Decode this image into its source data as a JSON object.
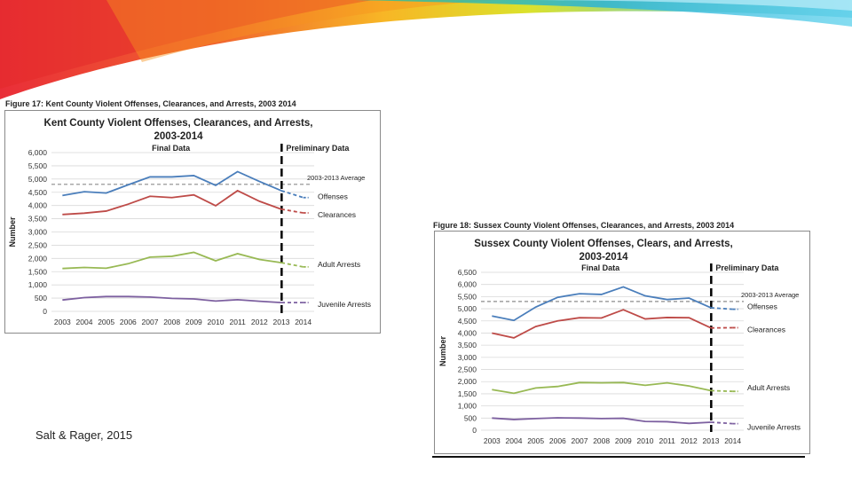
{
  "credit": "Salt & Rager, 2015",
  "figures": [
    {
      "caption": "Figure 17: Kent County Violent Offenses, Clearances, and Arrests, 2003    2014",
      "title_line1": "Kent County Violent Offenses, Clearances, and Arrests,",
      "title_line2": "2003-2014"
    },
    {
      "caption": "Figure 18: Sussex County Violent Offenses, Clearances, and Arrests, 2003    2014",
      "title_line1": "Sussex County Violent Offenses, Clears, and Arrests,",
      "title_line2": "2003-2014"
    }
  ],
  "chart_data": [
    {
      "type": "line",
      "title": "Kent County Violent Offenses, Clearances, and Arrests, 2003-2014",
      "ylabel": "Number",
      "ylim": [
        0,
        6000
      ],
      "yticks": [
        "0",
        "500",
        "1,000",
        "1,500",
        "2,000",
        "2,500",
        "3,000",
        "3,500",
        "4,000",
        "4,500",
        "5,000",
        "5,500",
        "6,000"
      ],
      "categories": [
        "2003",
        "2004",
        "2005",
        "2006",
        "2007",
        "2008",
        "2009",
        "2010",
        "2011",
        "2012",
        "2013",
        "2014"
      ],
      "grid": true,
      "annotations": {
        "final": "Final Data",
        "preliminary": "Preliminary Data"
      },
      "average": {
        "label": "2003-2013 Average",
        "value": 4800,
        "color": "#8c8c8c"
      },
      "series": [
        {
          "name": "Offenses",
          "color": "#4a7ebb",
          "values": [
            4380,
            4520,
            4470,
            4780,
            5080,
            5080,
            5130,
            4760,
            5280,
            4910,
            4560,
            4300
          ]
        },
        {
          "name": "Clearances",
          "color": "#be4b48",
          "values": [
            3660,
            3710,
            3790,
            4050,
            4350,
            4300,
            4400,
            3990,
            4560,
            4160,
            3860,
            3720
          ]
        },
        {
          "name": "Adult Arrests",
          "color": "#98b954",
          "values": [
            1620,
            1660,
            1630,
            1800,
            2050,
            2080,
            2230,
            1910,
            2180,
            1960,
            1840,
            1680
          ]
        },
        {
          "name": "Juvenile Arrests",
          "color": "#7d60a0",
          "values": [
            430,
            520,
            560,
            560,
            540,
            490,
            470,
            390,
            440,
            380,
            330,
            330
          ]
        }
      ]
    },
    {
      "type": "line",
      "title": "Sussex County Violent Offenses, Clears, and Arrests, 2003-2014",
      "ylabel": "Number",
      "ylim": [
        0,
        6500
      ],
      "yticks": [
        "0",
        "500",
        "1,000",
        "1,500",
        "2,000",
        "2,500",
        "3,000",
        "3,500",
        "4,000",
        "4,500",
        "5,000",
        "5,500",
        "6,000",
        "6,500"
      ],
      "categories": [
        "2003",
        "2004",
        "2005",
        "2006",
        "2007",
        "2008",
        "2009",
        "2010",
        "2011",
        "2012",
        "2013",
        "2014"
      ],
      "grid": true,
      "annotations": {
        "final": "Final Data",
        "preliminary": "Preliminary Data"
      },
      "average": {
        "label": "2003-2013 Average",
        "value": 5300,
        "color": "#8c8c8c"
      },
      "series": [
        {
          "name": "Offenses",
          "color": "#4a7ebb",
          "values": [
            4700,
            4520,
            5070,
            5470,
            5620,
            5590,
            5900,
            5530,
            5380,
            5440,
            5040,
            4980
          ]
        },
        {
          "name": "Clearances",
          "color": "#be4b48",
          "values": [
            4000,
            3800,
            4270,
            4500,
            4630,
            4620,
            4960,
            4580,
            4640,
            4630,
            4210,
            4220
          ]
        },
        {
          "name": "Adult Arrests",
          "color": "#98b954",
          "values": [
            1670,
            1520,
            1740,
            1800,
            1960,
            1950,
            1960,
            1850,
            1950,
            1820,
            1630,
            1600
          ]
        },
        {
          "name": "Juvenile Arrests",
          "color": "#7d60a0",
          "values": [
            500,
            440,
            480,
            510,
            500,
            480,
            490,
            360,
            350,
            280,
            330,
            270
          ]
        }
      ]
    }
  ]
}
